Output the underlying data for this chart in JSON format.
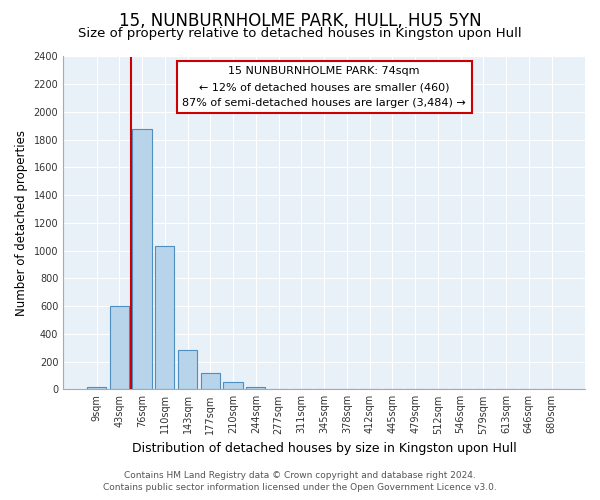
{
  "title": "15, NUNBURNHOLME PARK, HULL, HU5 5YN",
  "subtitle": "Size of property relative to detached houses in Kingston upon Hull",
  "xlabel": "Distribution of detached houses by size in Kingston upon Hull",
  "ylabel": "Number of detached properties",
  "bar_labels": [
    "9sqm",
    "43sqm",
    "76sqm",
    "110sqm",
    "143sqm",
    "177sqm",
    "210sqm",
    "244sqm",
    "277sqm",
    "311sqm",
    "345sqm",
    "378sqm",
    "412sqm",
    "445sqm",
    "479sqm",
    "512sqm",
    "546sqm",
    "579sqm",
    "613sqm",
    "646sqm",
    "680sqm"
  ],
  "bar_values": [
    20,
    600,
    1880,
    1035,
    280,
    115,
    50,
    20,
    0,
    0,
    0,
    0,
    0,
    0,
    0,
    0,
    0,
    0,
    0,
    0,
    0
  ],
  "red_line_x": 1.5,
  "highlight_color": "#cc0000",
  "bar_color": "#b8d4ea",
  "bar_edge_color": "#4f8fbf",
  "plot_bg_color": "#e8f0f8",
  "fig_bg_color": "#ffffff",
  "grid_color": "#ffffff",
  "ylim": [
    0,
    2400
  ],
  "yticks": [
    0,
    200,
    400,
    600,
    800,
    1000,
    1200,
    1400,
    1600,
    1800,
    2000,
    2200,
    2400
  ],
  "annotation_title": "15 NUNBURNHOLME PARK: 74sqm",
  "annotation_line1": "← 12% of detached houses are smaller (460)",
  "annotation_line2": "87% of semi-detached houses are larger (3,484) →",
  "footer_line1": "Contains HM Land Registry data © Crown copyright and database right 2024.",
  "footer_line2": "Contains public sector information licensed under the Open Government Licence v3.0.",
  "title_fontsize": 12,
  "subtitle_fontsize": 9.5,
  "ylabel_fontsize": 8.5,
  "xlabel_fontsize": 9,
  "tick_fontsize": 7,
  "annotation_fontsize": 8,
  "footer_fontsize": 6.5
}
